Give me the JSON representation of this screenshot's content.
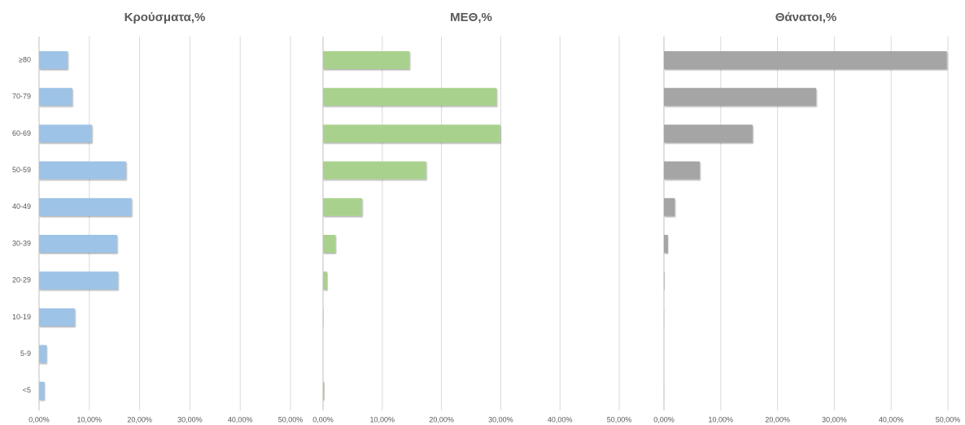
{
  "chart_data": [
    {
      "type": "bar",
      "title": "Κρούσματα,%",
      "color": "#9dc3e6",
      "categories": [
        "≥80",
        "70-79",
        "60-69",
        "50-59",
        "40-49",
        "30-39",
        "20-29",
        "10-19",
        "5-9",
        "<5"
      ],
      "values": [
        5.7,
        6.6,
        10.5,
        17.3,
        18.4,
        15.5,
        15.7,
        7.1,
        1.5,
        1.1
      ],
      "xlim": [
        0,
        50
      ],
      "xticks": [
        {
          "value": 0,
          "label": "0,00%"
        },
        {
          "value": 10,
          "label": "10,00%"
        },
        {
          "value": 20,
          "label": "20,00%"
        },
        {
          "value": 30,
          "label": "30,00%"
        },
        {
          "value": 40,
          "label": "40,00%"
        },
        {
          "value": 50,
          "label": "50,00%"
        }
      ],
      "grid": true
    },
    {
      "type": "bar",
      "title": "ΜΕΘ,%",
      "color": "#a9d18e",
      "values": [
        14.6,
        29.3,
        29.9,
        17.4,
        6.6,
        2.1,
        0.7,
        0.1,
        0,
        0.2
      ],
      "xlim": [
        0,
        50
      ],
      "xticks": [
        {
          "value": 0,
          "label": "0,00%"
        },
        {
          "value": 10,
          "label": "10,00%"
        },
        {
          "value": 20,
          "label": "20,00%"
        },
        {
          "value": 30,
          "label": "30,00%"
        },
        {
          "value": 40,
          "label": "40,00%"
        },
        {
          "value": 50,
          "label": "50,00%"
        }
      ],
      "grid": true
    },
    {
      "type": "bar",
      "title": "Θάνατοι,%",
      "color": "#a5a5a5",
      "values": [
        49.8,
        26.8,
        15.6,
        6.3,
        1.9,
        0.7,
        0.1,
        0.05,
        0,
        0.02
      ],
      "xlim": [
        0,
        50
      ],
      "xticks": [
        {
          "value": 0,
          "label": "0,00%"
        },
        {
          "value": 10,
          "label": "10,00%"
        },
        {
          "value": 20,
          "label": "20,00%"
        },
        {
          "value": 30,
          "label": "30,00%"
        },
        {
          "value": 40,
          "label": "40,00%"
        },
        {
          "value": 50,
          "label": "50,00%"
        }
      ],
      "grid": true
    }
  ]
}
